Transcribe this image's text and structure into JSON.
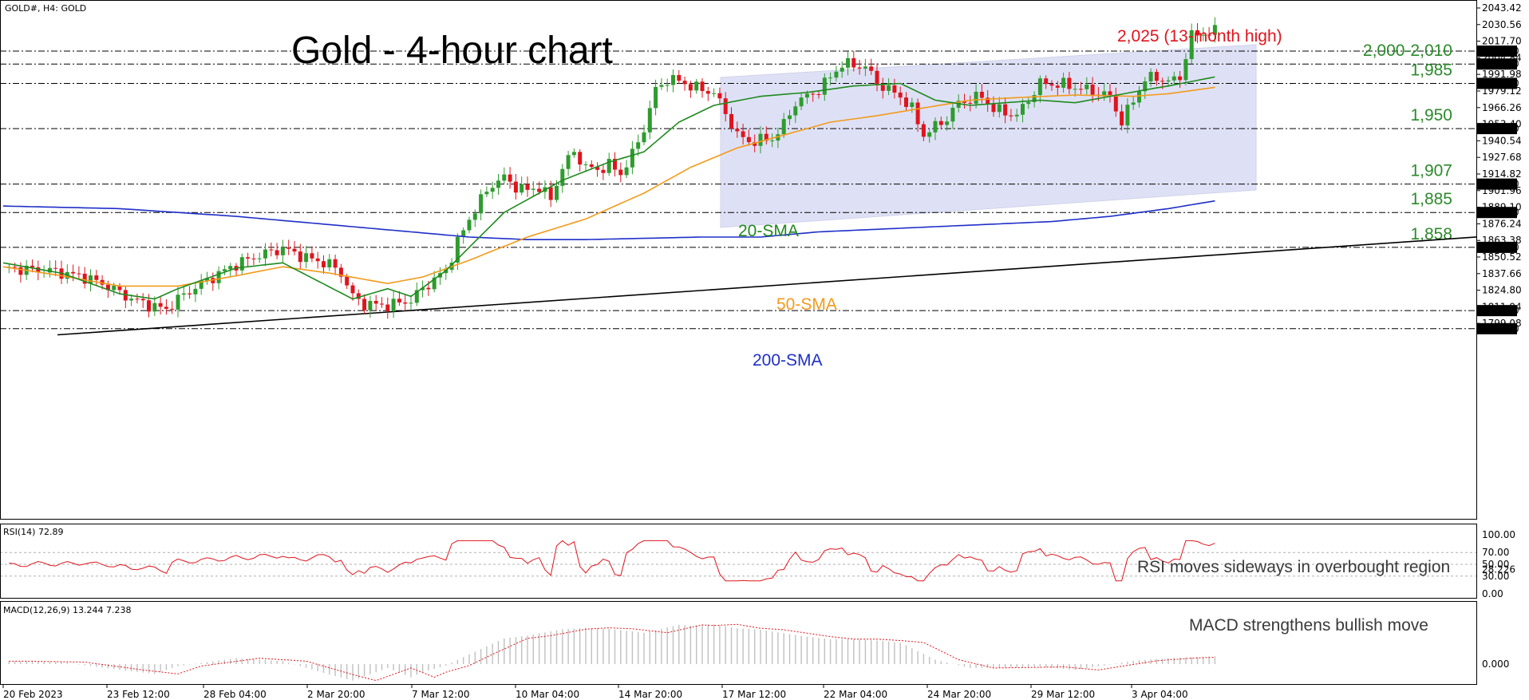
{
  "window": {
    "symbol_info": "GOLD#, H4:  GOLD"
  },
  "title": "Gold - 4-hour chart",
  "colors": {
    "bull": "#2e9c2e",
    "bear": "#e0141c",
    "sma20": "#1f8a1f",
    "sma50": "#f39a1a",
    "sma200": "#1f2fc8",
    "trend": "#000000",
    "channel": "#d9dcf4",
    "rsi": "#e0141c",
    "macd_hist": "#c0c0c0",
    "macd_signal": "#e0141c",
    "ann_green": "#2b8a2b",
    "ann_red": "#e0141c"
  },
  "chart_data": {
    "type": "candlestick",
    "price_axis_ticks": [
      "2043.42",
      "2030.56",
      "2017.70",
      "2004.84",
      "1991.98",
      "1979.12",
      "1966.26",
      "1953.40",
      "1940.54",
      "1927.68",
      "1914.82",
      "1901.96",
      "1889.10",
      "1876.24",
      "1863.38",
      "1850.52",
      "1837.66",
      "1824.80",
      "1811.94",
      "1799.08"
    ],
    "price_range": [
      1789,
      2045
    ],
    "levels": [
      {
        "price": 2010,
        "tag": "2010.00",
        "label": ""
      },
      {
        "price": 2000,
        "tag": "2000.00",
        "label": "2,000-2,010"
      },
      {
        "price": 1985,
        "tag": "1985.00",
        "label": "1,985"
      },
      {
        "price": 1950,
        "tag": "1950.00",
        "label": "1,950"
      },
      {
        "price": 1907,
        "tag": "1907.00",
        "label": "1,907"
      },
      {
        "price": 1885,
        "tag": "1885.00",
        "label": "1,885"
      },
      {
        "price": 1858,
        "tag": "1858.00",
        "label": "1,858"
      },
      {
        "price": 1809,
        "tag": "1809.00",
        "label": ""
      },
      {
        "price": 1795,
        "tag": "1795.00",
        "label": ""
      }
    ],
    "top_annotation": "2,025 (13-month high)",
    "sma_labels": {
      "sma20": "20-SMA",
      "sma50": "50-SMA",
      "sma200": "200-SMA"
    },
    "x_labels": [
      "20 Feb 2023",
      "23 Feb 12:00",
      "28 Feb 04:00",
      "2 Mar 20:00",
      "7 Mar 12:00",
      "10 Mar 04:00",
      "14 Mar 20:00",
      "17 Mar 12:00",
      "22 Mar 04:00",
      "24 Mar 20:00",
      "29 Mar 12:00",
      "3 Apr 04:00"
    ],
    "close_path": [
      [
        0,
        1842
      ],
      [
        8,
        1840
      ],
      [
        14,
        1835
      ],
      [
        18,
        1828
      ],
      [
        22,
        1818
      ],
      [
        26,
        1812
      ],
      [
        28,
        1810
      ],
      [
        30,
        1818
      ],
      [
        34,
        1830
      ],
      [
        40,
        1845
      ],
      [
        44,
        1852
      ],
      [
        48,
        1857
      ],
      [
        52,
        1850
      ],
      [
        56,
        1845
      ],
      [
        58,
        1838
      ],
      [
        60,
        1820
      ],
      [
        62,
        1814
      ],
      [
        66,
        1813
      ],
      [
        70,
        1817
      ],
      [
        72,
        1826
      ],
      [
        76,
        1840
      ],
      [
        78,
        1862
      ],
      [
        80,
        1880
      ],
      [
        82,
        1895
      ],
      [
        84,
        1907
      ],
      [
        86,
        1912
      ],
      [
        88,
        1905
      ],
      [
        90,
        1902
      ],
      [
        92,
        1905
      ],
      [
        94,
        1895
      ],
      [
        96,
        1920
      ],
      [
        98,
        1932
      ],
      [
        100,
        1920
      ],
      [
        102,
        1918
      ],
      [
        104,
        1922
      ],
      [
        106,
        1915
      ],
      [
        108,
        1930
      ],
      [
        110,
        1950
      ],
      [
        112,
        1980
      ],
      [
        114,
        1988
      ],
      [
        116,
        1987
      ],
      [
        118,
        1983
      ],
      [
        120,
        1980
      ],
      [
        122,
        1978
      ],
      [
        124,
        1962
      ],
      [
        126,
        1945
      ],
      [
        128,
        1940
      ],
      [
        132,
        1942
      ],
      [
        134,
        1953
      ],
      [
        136,
        1970
      ],
      [
        140,
        1980
      ],
      [
        142,
        1990
      ],
      [
        144,
        2000
      ],
      [
        148,
        1998
      ],
      [
        150,
        1985
      ],
      [
        154,
        1975
      ],
      [
        156,
        1965
      ],
      [
        158,
        1945
      ],
      [
        162,
        1958
      ],
      [
        164,
        1970
      ],
      [
        168,
        1975
      ],
      [
        170,
        1965
      ],
      [
        174,
        1960
      ],
      [
        178,
        1985
      ],
      [
        182,
        1984
      ],
      [
        186,
        1980
      ],
      [
        190,
        1975
      ],
      [
        192,
        1955
      ],
      [
        194,
        1972
      ],
      [
        196,
        1988
      ],
      [
        198,
        1990
      ],
      [
        200,
        1986
      ],
      [
        202,
        1990
      ],
      [
        204,
        2022
      ],
      [
        206,
        2024
      ],
      [
        208,
        2025
      ]
    ],
    "sma20_path": [
      [
        0,
        1846
      ],
      [
        10,
        1838
      ],
      [
        20,
        1822
      ],
      [
        26,
        1818
      ],
      [
        30,
        1826
      ],
      [
        40,
        1842
      ],
      [
        48,
        1846
      ],
      [
        54,
        1832
      ],
      [
        60,
        1818
      ],
      [
        66,
        1826
      ],
      [
        70,
        1820
      ],
      [
        76,
        1840
      ],
      [
        86,
        1885
      ],
      [
        96,
        1910
      ],
      [
        104,
        1924
      ],
      [
        110,
        1932
      ],
      [
        116,
        1955
      ],
      [
        122,
        1968
      ],
      [
        130,
        1975
      ],
      [
        138,
        1978
      ],
      [
        146,
        1983
      ],
      [
        154,
        1985
      ],
      [
        160,
        1972
      ],
      [
        166,
        1968
      ],
      [
        172,
        1970
      ],
      [
        178,
        1972
      ],
      [
        184,
        1970
      ],
      [
        190,
        1975
      ],
      [
        196,
        1980
      ],
      [
        200,
        1983
      ],
      [
        208,
        1990
      ]
    ],
    "sma50_path": [
      [
        0,
        1843
      ],
      [
        10,
        1836
      ],
      [
        20,
        1828
      ],
      [
        30,
        1828
      ],
      [
        40,
        1836
      ],
      [
        48,
        1843
      ],
      [
        56,
        1838
      ],
      [
        66,
        1830
      ],
      [
        72,
        1835
      ],
      [
        80,
        1848
      ],
      [
        90,
        1866
      ],
      [
        100,
        1880
      ],
      [
        110,
        1900
      ],
      [
        118,
        1920
      ],
      [
        126,
        1935
      ],
      [
        134,
        1945
      ],
      [
        142,
        1955
      ],
      [
        150,
        1960
      ],
      [
        158,
        1966
      ],
      [
        166,
        1972
      ],
      [
        174,
        1974
      ],
      [
        184,
        1976
      ],
      [
        194,
        1975
      ],
      [
        200,
        1977
      ],
      [
        208,
        1982
      ]
    ],
    "sma200_path": [
      [
        0,
        1890
      ],
      [
        20,
        1888
      ],
      [
        40,
        1882
      ],
      [
        60,
        1874
      ],
      [
        80,
        1866
      ],
      [
        90,
        1864
      ],
      [
        100,
        1864
      ],
      [
        110,
        1865
      ],
      [
        120,
        1866
      ],
      [
        130,
        1866
      ],
      [
        140,
        1870
      ],
      [
        150,
        1872
      ],
      [
        160,
        1874
      ],
      [
        170,
        1876
      ],
      [
        180,
        1878
      ],
      [
        190,
        1882
      ],
      [
        200,
        1888
      ],
      [
        208,
        1894
      ]
    ],
    "trendline": [
      [
        1794,
        1866
      ]
    ],
    "rsi": {
      "label": "RSI(14) 72.89",
      "ticks": [
        "100.00",
        "70.00",
        "50.00",
        "30.00",
        "0.00"
      ],
      "annotation": "RSI moves sideways in overbought region"
    },
    "macd": {
      "label": "MACD(12,26,9) 13.244 7.238",
      "ticks": [
        "28.226",
        "0.000"
      ],
      "annotation": "MACD strengthens bullish move"
    }
  }
}
